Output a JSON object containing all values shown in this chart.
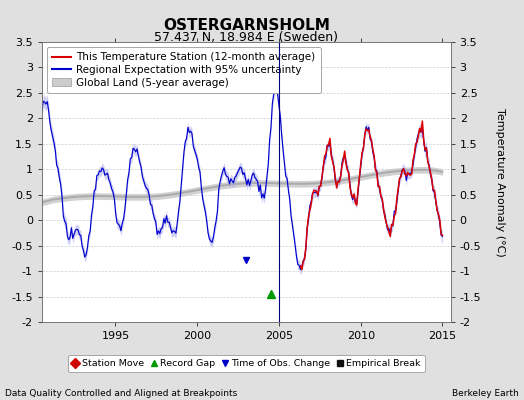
{
  "title": "OSTERGARNSHOLM",
  "subtitle": "57.437 N, 18.984 E (Sweden)",
  "ylabel": "Temperature Anomaly (°C)",
  "xlabel_left": "Data Quality Controlled and Aligned at Breakpoints",
  "xlabel_right": "Berkeley Earth",
  "ylim": [
    -2.0,
    3.5
  ],
  "xlim": [
    1990.5,
    2015.5
  ],
  "yticks": [
    -2,
    -1.5,
    -1,
    -0.5,
    0,
    0.5,
    1,
    1.5,
    2,
    2.5,
    3,
    3.5
  ],
  "xticks": [
    1995,
    2000,
    2005,
    2010,
    2015
  ],
  "bg_color": "#e0e0e0",
  "plot_bg_color": "#ffffff",
  "grid_color": "#c8d0d8",
  "blue_line_color": "#0000cc",
  "blue_fill_color": "#aaaaee",
  "red_line_color": "#dd0000",
  "gray_line_color": "#aaaaaa",
  "gray_fill_color": "#cccccc",
  "vline_year": 2005.0,
  "vline_color": "#000080",
  "title_fontsize": 11,
  "subtitle_fontsize": 9,
  "tick_fontsize": 8,
  "label_fontsize": 8,
  "legend_fontsize": 7.5
}
